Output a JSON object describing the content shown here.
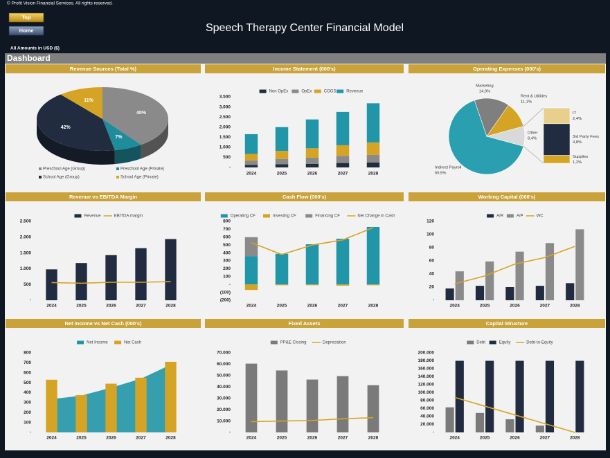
{
  "header": {
    "copyright": "© Profit Vision Financial Services. All rights reserved.",
    "buttons": [
      "Top",
      "Home"
    ],
    "title": "Speech Therapy Center Financial Model",
    "currency_note": "All Amounts in  USD ($)",
    "section": "Dashboard"
  },
  "chart_data": [
    {
      "type": "pie",
      "title": "Revenue Sources (Total %)",
      "categories": [
        "Preschool Age (Group)",
        "Preschool Age (Private)",
        "School Age (Group)",
        "School Age (Private)"
      ],
      "values": [
        40,
        7,
        42,
        11
      ],
      "value_labels": [
        "40%",
        "7%",
        "42%",
        "11%"
      ],
      "colors": [
        "#8a8a8a",
        "#1f8c9c",
        "#222c40",
        "#d6a425"
      ],
      "legend": "bottom"
    },
    {
      "type": "bar",
      "title": "Income Statement (000's)",
      "stacked": true,
      "legend": "top",
      "categories": [
        "2024",
        "2025",
        "2026",
        "2027",
        "2028"
      ],
      "series": [
        {
          "name": "Non OpEx",
          "color": "#222c40",
          "kind": "bar",
          "values": [
            120,
            160,
            180,
            220,
            240
          ]
        },
        {
          "name": "OpEx",
          "color": "#8a8a8a",
          "kind": "bar",
          "values": [
            220,
            260,
            300,
            350,
            380
          ]
        },
        {
          "name": "COGS",
          "color": "#d6a425",
          "kind": "bar",
          "values": [
            330,
            400,
            470,
            530,
            620
          ]
        },
        {
          "name": "Revenue",
          "color": "#2096a8",
          "kind": "bar",
          "values": [
            980,
            1180,
            1430,
            1650,
            1940
          ]
        }
      ],
      "ylim": [
        0,
        3500
      ],
      "yticks": [
        {
          "value": 0,
          "label": "-"
        },
        500,
        {
          "value": 1000,
          "label": "1.000"
        },
        {
          "value": 1500,
          "label": "1.500"
        },
        {
          "value": 2000,
          "label": "2.000"
        },
        {
          "value": 2500,
          "label": "2.500"
        },
        {
          "value": 3000,
          "label": "3.000"
        },
        {
          "value": 3500,
          "label": "3.500"
        }
      ]
    },
    {
      "type": "pie_of_pie",
      "title": "Operating Expenses (000's)",
      "categories": [
        "Indirect Payroll",
        "Marketing",
        "Rent & Utilities",
        "Other"
      ],
      "values": [
        65.5,
        14.9,
        11.1,
        8.4
      ],
      "value_labels": [
        "65,5%",
        "14,9%",
        "11,1%",
        "8,4%"
      ],
      "colors": [
        "#2a9fb0",
        "#7f7f7f",
        "#d6a425",
        "#d9d9d9"
      ],
      "breakdown": {
        "categories": [
          "IT",
          "3rd Party Fees",
          "Supplies"
        ],
        "values": [
          2.4,
          4.8,
          1.2
        ],
        "value_labels": [
          "2,4%",
          "4,8%",
          "1,2%"
        ],
        "colors": [
          "#e8d08c",
          "#222c40",
          "#d6a425"
        ]
      }
    },
    {
      "type": "bar",
      "title": "Revenue vs EBITDA Margin",
      "stacked": false,
      "legend": "top",
      "categories": [
        "2024",
        "2025",
        "2026",
        "2027",
        "2028"
      ],
      "series": [
        {
          "name": "Revenue",
          "color": "#222c40",
          "kind": "bar",
          "values": [
            980,
            1180,
            1430,
            1650,
            1940
          ]
        },
        {
          "name": "EBITDA margin",
          "color": "#d6a425",
          "kind": "line",
          "values": [
            560,
            540,
            570,
            570,
            590
          ]
        }
      ],
      "ylim": [
        0,
        2500
      ],
      "yticks": [
        {
          "value": 0,
          "label": "-"
        },
        500,
        {
          "value": 1000,
          "label": "1.000"
        },
        {
          "value": 1500,
          "label": "1.500"
        },
        {
          "value": 2000,
          "label": "2.000"
        },
        {
          "value": 2500,
          "label": "2.500"
        }
      ]
    },
    {
      "type": "bar",
      "title": "Cash Flow (000's)",
      "stacked": true,
      "legend": "top",
      "categories": [
        "2024",
        "2025",
        "2026",
        "2027",
        "2028"
      ],
      "series": [
        {
          "name": "Operating CF",
          "color": "#2096a8",
          "kind": "bar",
          "values": [
            360,
            390,
            510,
            580,
            730
          ]
        },
        {
          "name": "Investing CF",
          "color": "#d6a425",
          "kind": "bar",
          "values": [
            -70,
            -10,
            -10,
            -15,
            -10
          ]
        },
        {
          "name": "Financing CF",
          "color": "#8a8a8a",
          "kind": "bar",
          "values": [
            240,
            0,
            0,
            0,
            0
          ]
        },
        {
          "name": "Net Change in Cash",
          "color": "#d6a425",
          "kind": "line",
          "values": [
            530,
            380,
            500,
            565,
            720
          ]
        }
      ],
      "ylim": [
        -200,
        800
      ],
      "yticks": [
        {
          "value": -200,
          "label": "(200)"
        },
        {
          "value": -100,
          "label": "(100)"
        },
        {
          "value": 0,
          "label": "-"
        },
        100,
        200,
        300,
        400,
        500,
        600,
        700,
        800
      ]
    },
    {
      "type": "bar",
      "title": "Working Capital (000's)",
      "stacked": false,
      "legend": "top",
      "categories": [
        "2024",
        "2025",
        "2026",
        "2027",
        "2028"
      ],
      "series": [
        {
          "name": "A/R",
          "color": "#222c40",
          "kind": "bar",
          "values": [
            18,
            22,
            20,
            22,
            26
          ]
        },
        {
          "name": "A/P",
          "color": "#8a8a8a",
          "kind": "bar",
          "values": [
            44,
            59,
            74,
            87,
            108
          ]
        },
        {
          "name": "WC",
          "color": "#d6a425",
          "kind": "line",
          "values": [
            25,
            37,
            55,
            65,
            82
          ]
        }
      ],
      "ylim": [
        0,
        120
      ],
      "yticks": [
        {
          "value": 0,
          "label": "-"
        },
        20,
        40,
        60,
        80,
        100,
        120
      ]
    },
    {
      "type": "bar",
      "title": "Net Income vs Net Cash (000's)",
      "stacked": false,
      "legend": "top",
      "categories": [
        "2024",
        "2025",
        "2026",
        "2027",
        "2028"
      ],
      "series": [
        {
          "name": "Net Income",
          "color": "#2096a8",
          "kind": "area",
          "values": [
            335,
            370,
            450,
            540,
            680
          ]
        },
        {
          "name": "Net Cash",
          "color": "#d6a425",
          "kind": "bar",
          "values": [
            530,
            375,
            490,
            550,
            710
          ]
        }
      ],
      "ylim": [
        0,
        800
      ],
      "yticks": [
        {
          "value": 0,
          "label": "-"
        },
        100,
        200,
        300,
        400,
        500,
        600,
        700,
        800
      ]
    },
    {
      "type": "bar",
      "title": "Fixed Assets",
      "stacked": false,
      "legend": "top",
      "categories": [
        "2024",
        "2025",
        "2026",
        "2027",
        "2028"
      ],
      "series": [
        {
          "name": "PP&E Closing",
          "color": "#7a7a7a",
          "kind": "bar",
          "values": [
            60500,
            54500,
            46500,
            49500,
            41500
          ]
        },
        {
          "name": "Depreciation",
          "color": "#d6a425",
          "kind": "line",
          "values": [
            9500,
            10000,
            10500,
            12000,
            13000
          ]
        }
      ],
      "ylim": [
        0,
        70000
      ],
      "yticks": [
        {
          "value": 0,
          "label": "-"
        },
        {
          "value": 10000,
          "label": "10.000"
        },
        {
          "value": 20000,
          "label": "20.000"
        },
        {
          "value": 30000,
          "label": "30.000"
        },
        {
          "value": 40000,
          "label": "40.000"
        },
        {
          "value": 50000,
          "label": "50.000"
        },
        {
          "value": 60000,
          "label": "60.000"
        },
        {
          "value": 70000,
          "label": "70.000"
        }
      ]
    },
    {
      "type": "bar",
      "title": "Capital Structure",
      "stacked": false,
      "legend": "top",
      "categories": [
        "2024",
        "2025",
        "2026",
        "2027",
        "2028"
      ],
      "series": [
        {
          "name": "Debt",
          "color": "#7a7a7a",
          "kind": "bar",
          "values": [
            63000,
            49000,
            33000,
            17000,
            0
          ]
        },
        {
          "name": "Equity",
          "color": "#222c40",
          "kind": "bar",
          "values": [
            180000,
            180000,
            180000,
            180000,
            180000
          ]
        },
        {
          "name": "Debt-to-Equity",
          "color": "#d6a425",
          "kind": "line",
          "values": [
            88000,
            66000,
            44000,
            22000,
            0
          ]
        }
      ],
      "ylim": [
        0,
        200000
      ],
      "yticks": [
        {
          "value": 0,
          "label": "-"
        },
        {
          "value": 20000,
          "label": "20.000"
        },
        {
          "value": 40000,
          "label": "40.000"
        },
        {
          "value": 60000,
          "label": "60.000"
        },
        {
          "value": 80000,
          "label": "80.000"
        },
        {
          "value": 100000,
          "label": "100.000"
        },
        {
          "value": 120000,
          "label": "120.000"
        },
        {
          "value": 140000,
          "label": "140.000"
        },
        {
          "value": 160000,
          "label": "160.000"
        },
        {
          "value": 180000,
          "label": "180.000"
        },
        {
          "value": 200000,
          "label": "200.000"
        }
      ]
    }
  ]
}
